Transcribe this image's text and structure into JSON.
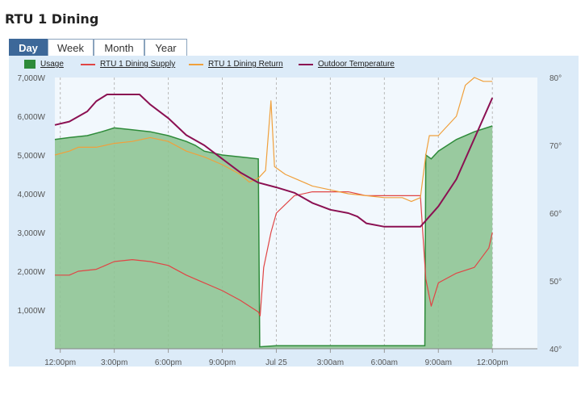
{
  "page_title": "RTU 1 Dining",
  "tabs": [
    {
      "label": "Day",
      "active": true
    },
    {
      "label": "Week",
      "active": false
    },
    {
      "label": "Month",
      "active": false
    },
    {
      "label": "Year",
      "active": false
    }
  ],
  "legend": [
    {
      "label": "Usage",
      "color": "#2e8b3a",
      "kind": "area"
    },
    {
      "label": "RTU 1 Dining Supply",
      "color": "#e04545",
      "kind": "line"
    },
    {
      "label": "RTU 1 Dining Return",
      "color": "#f0a03c",
      "kind": "line"
    },
    {
      "label": "Outdoor Temperature",
      "color": "#8b1052",
      "kind": "line"
    }
  ],
  "chart_data": {
    "type": "line",
    "x_unit": "hours from 12:00pm Jul 24",
    "x_ticks": [
      "12:00pm",
      "3:00pm",
      "6:00pm",
      "9:00pm",
      "Jul 25",
      "3:00am",
      "6:00am",
      "9:00am",
      "12:00pm"
    ],
    "y_left": {
      "label": "",
      "ticks": [
        "1,000W",
        "2,000W",
        "3,000W",
        "4,000W",
        "5,000W",
        "6,000W",
        "7,000W"
      ],
      "range": [
        0,
        7000
      ]
    },
    "y_right": {
      "label": "",
      "ticks": [
        "40°",
        "50°",
        "60°",
        "70°",
        "80°"
      ],
      "range": [
        40,
        80
      ]
    },
    "grid": "vertical dashed lines at x ticks",
    "series": [
      {
        "name": "Usage",
        "axis": "left",
        "type": "area",
        "color": "#2e8b3a",
        "fill": "#8fc495",
        "points": [
          [
            -0.3,
            5400
          ],
          [
            0.5,
            5450
          ],
          [
            1.5,
            5500
          ],
          [
            2.3,
            5600
          ],
          [
            3,
            5700
          ],
          [
            4,
            5650
          ],
          [
            5,
            5600
          ],
          [
            6,
            5500
          ],
          [
            7,
            5350
          ],
          [
            7.5,
            5250
          ],
          [
            8,
            5100
          ],
          [
            9,
            5000
          ],
          [
            10,
            4950
          ],
          [
            11,
            4900
          ],
          [
            11.08,
            50
          ],
          [
            12,
            80
          ],
          [
            15,
            80
          ],
          [
            18,
            80
          ],
          [
            19.5,
            80
          ],
          [
            20.25,
            80
          ],
          [
            20.3,
            5000
          ],
          [
            20.6,
            4900
          ],
          [
            21,
            5100
          ],
          [
            22,
            5400
          ],
          [
            23,
            5600
          ],
          [
            24,
            5750
          ]
        ]
      },
      {
        "name": "RTU 1 Dining Supply",
        "axis": "left",
        "type": "line",
        "color": "#e04545",
        "points": [
          [
            -0.3,
            1900
          ],
          [
            0.5,
            1900
          ],
          [
            1,
            2000
          ],
          [
            2,
            2050
          ],
          [
            3,
            2250
          ],
          [
            4,
            2300
          ],
          [
            5,
            2250
          ],
          [
            6,
            2150
          ],
          [
            7,
            1900
          ],
          [
            8,
            1700
          ],
          [
            9,
            1500
          ],
          [
            10,
            1250
          ],
          [
            11,
            950
          ],
          [
            11.1,
            850
          ],
          [
            11.3,
            2100
          ],
          [
            11.7,
            3000
          ],
          [
            12,
            3500
          ],
          [
            13,
            3950
          ],
          [
            14,
            4050
          ],
          [
            15,
            4050
          ],
          [
            16,
            4050
          ],
          [
            17,
            3950
          ],
          [
            18,
            3950
          ],
          [
            19,
            3950
          ],
          [
            20,
            3950
          ],
          [
            20.3,
            1800
          ],
          [
            20.6,
            1100
          ],
          [
            21,
            1700
          ],
          [
            22,
            1950
          ],
          [
            23,
            2100
          ],
          [
            23.8,
            2600
          ],
          [
            24,
            3000
          ]
        ]
      },
      {
        "name": "RTU 1 Dining Return",
        "axis": "left",
        "type": "line",
        "color": "#f0a03c",
        "points": [
          [
            -0.3,
            5000
          ],
          [
            0.5,
            5100
          ],
          [
            1,
            5200
          ],
          [
            2,
            5200
          ],
          [
            3,
            5300
          ],
          [
            4,
            5350
          ],
          [
            5,
            5450
          ],
          [
            6,
            5350
          ],
          [
            7,
            5100
          ],
          [
            8,
            4950
          ],
          [
            9,
            4750
          ],
          [
            10,
            4500
          ],
          [
            10.5,
            4300
          ],
          [
            11,
            4400
          ],
          [
            11.4,
            4600
          ],
          [
            11.7,
            6400
          ],
          [
            11.9,
            4700
          ],
          [
            12.5,
            4500
          ],
          [
            13,
            4400
          ],
          [
            14,
            4200
          ],
          [
            15,
            4100
          ],
          [
            16,
            4000
          ],
          [
            17,
            3950
          ],
          [
            18,
            3900
          ],
          [
            19,
            3900
          ],
          [
            19.5,
            3800
          ],
          [
            20,
            3900
          ],
          [
            20.3,
            5000
          ],
          [
            20.5,
            5500
          ],
          [
            21,
            5500
          ],
          [
            22,
            6000
          ],
          [
            22.5,
            6800
          ],
          [
            23,
            7000
          ],
          [
            23.5,
            6900
          ],
          [
            24,
            6900
          ]
        ]
      },
      {
        "name": "Outdoor Temperature",
        "axis": "right",
        "type": "line",
        "color": "#8b1052",
        "points": [
          [
            -0.3,
            73
          ],
          [
            0.5,
            73.5
          ],
          [
            1.5,
            75
          ],
          [
            2,
            76.5
          ],
          [
            2.6,
            77.5
          ],
          [
            3.5,
            77.5
          ],
          [
            4.4,
            77.5
          ],
          [
            5,
            76
          ],
          [
            6,
            74
          ],
          [
            7,
            71.5
          ],
          [
            8,
            70
          ],
          [
            9,
            68
          ],
          [
            10,
            66
          ],
          [
            11,
            64.5
          ],
          [
            12,
            63.8
          ],
          [
            13,
            63
          ],
          [
            14,
            61.5
          ],
          [
            15,
            60.5
          ],
          [
            16,
            60
          ],
          [
            16.5,
            59.5
          ],
          [
            17,
            58.5
          ],
          [
            18,
            58
          ],
          [
            19,
            58
          ],
          [
            20,
            58
          ],
          [
            21,
            61
          ],
          [
            22,
            65
          ],
          [
            23,
            71
          ],
          [
            24,
            77
          ]
        ]
      }
    ]
  }
}
